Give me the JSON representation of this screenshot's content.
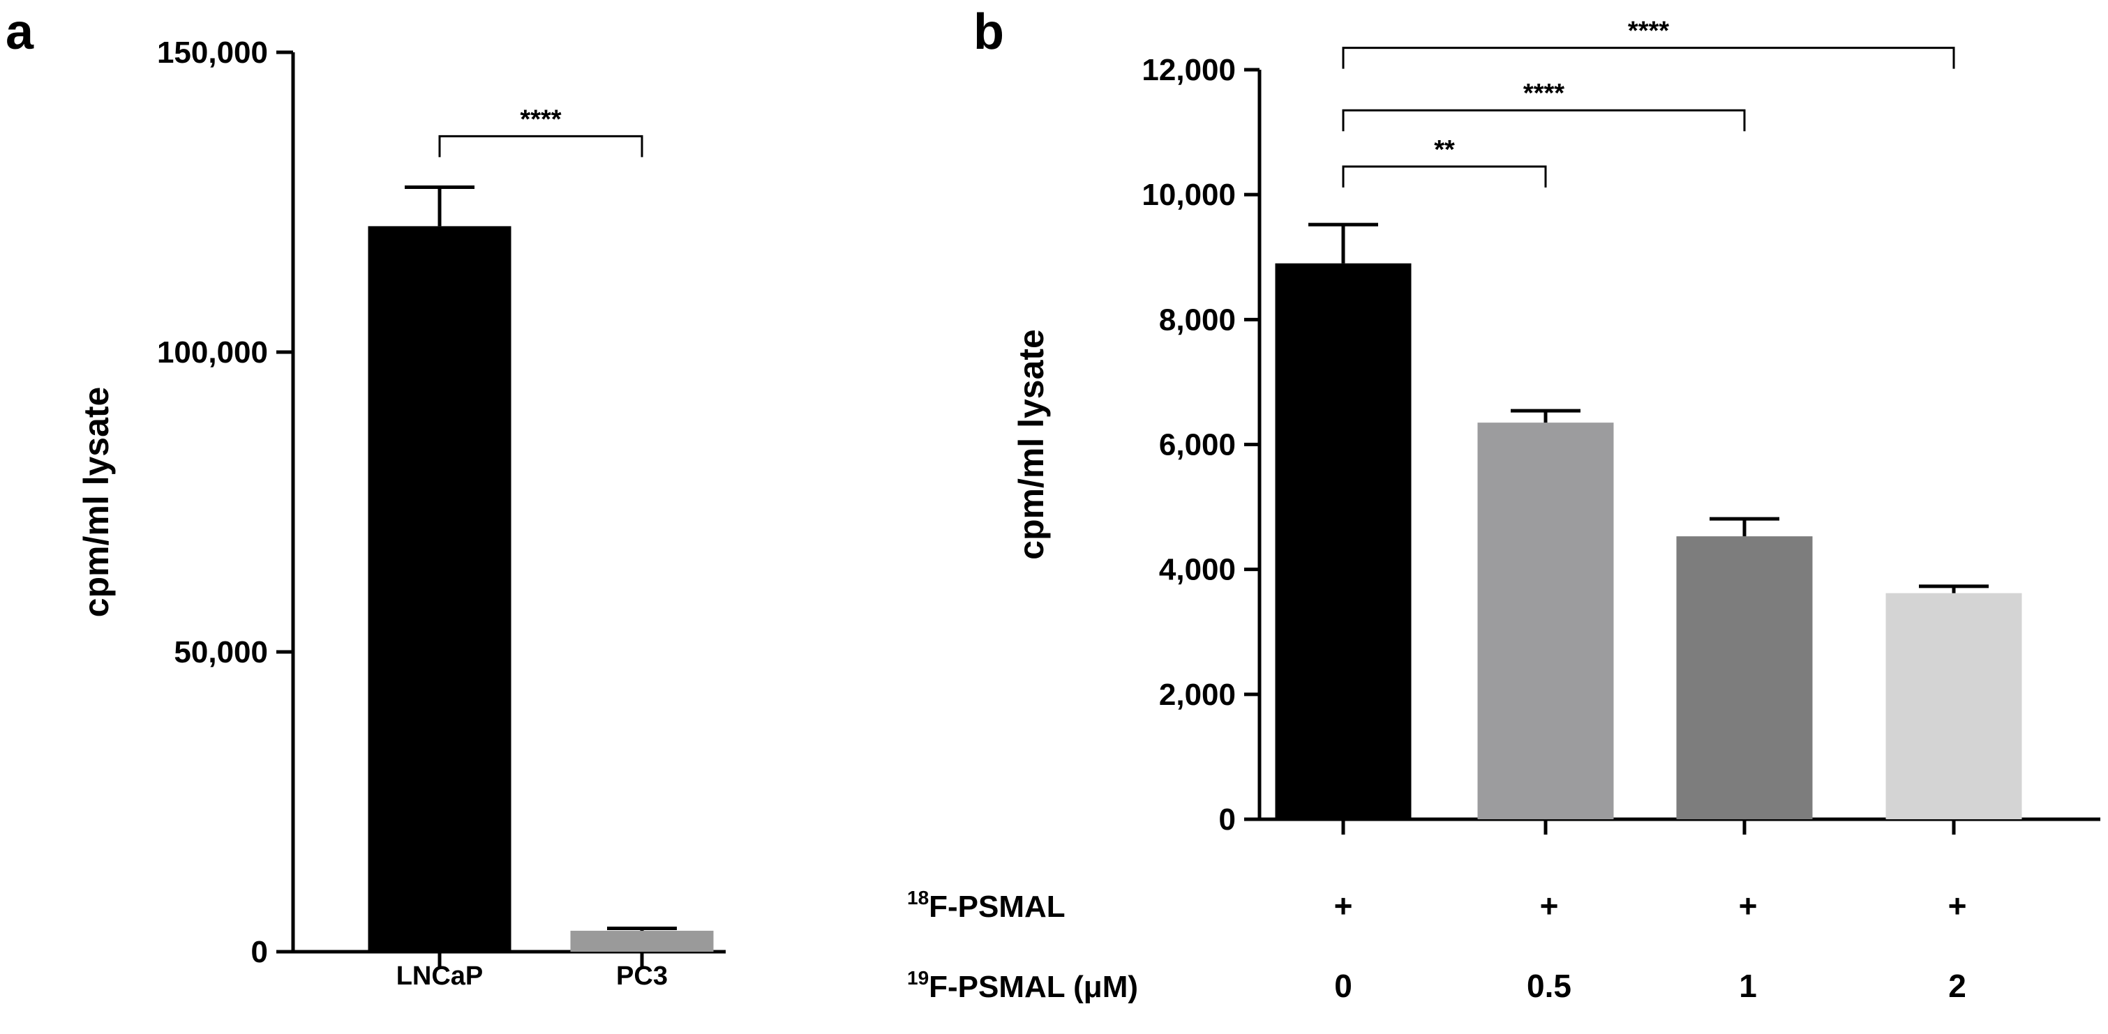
{
  "chart_data": [
    {
      "panel": "a",
      "type": "bar",
      "categories": [
        "LNCaP",
        "PC3"
      ],
      "values": [
        121000,
        3500
      ],
      "errors": [
        6500,
        400
      ],
      "colors": [
        "#000000",
        "#9a9a9a"
      ],
      "ylabel": "cpm/ml lysate",
      "xlabel": "",
      "ylim": [
        0,
        150000
      ],
      "yticks": [
        0,
        50000,
        100000,
        150000
      ],
      "ytick_labels": [
        "0",
        "50,000",
        "100,000",
        "150,000"
      ],
      "significance": [
        {
          "from": 0,
          "to": 1,
          "label": "****",
          "level": 136000
        }
      ]
    },
    {
      "panel": "b",
      "type": "bar",
      "categories": [
        "0",
        "0.5",
        "1",
        "2"
      ],
      "values": [
        8900,
        6350,
        4530,
        3620
      ],
      "errors": [
        620,
        190,
        280,
        110
      ],
      "colors": [
        "#000000",
        "#9c9c9e",
        "#7d7d7d",
        "#d4d4d4"
      ],
      "ylabel": "cpm/ml lysate",
      "xlabel": "",
      "ylim": [
        0,
        12000
      ],
      "yticks": [
        0,
        2000,
        4000,
        6000,
        8000,
        10000,
        12000
      ],
      "ytick_labels": [
        "0",
        "2,000",
        "4,000",
        "6,000",
        "8,000",
        "10,000",
        "12,000"
      ],
      "significance": [
        {
          "from": 0,
          "to": 1,
          "label": "**",
          "level": 10450
        },
        {
          "from": 0,
          "to": 2,
          "label": "****",
          "level": 11350
        },
        {
          "from": 0,
          "to": 3,
          "label": "****",
          "level": 12350
        }
      ],
      "condition_rows": [
        {
          "sup": "18",
          "label": "F-PSMAL",
          "values": [
            "+",
            "+",
            "+",
            "+"
          ]
        },
        {
          "sup": "19",
          "label": "F-PSMAL (μM)",
          "values": [
            "0",
            "0.5",
            "1",
            "2"
          ]
        }
      ]
    }
  ]
}
